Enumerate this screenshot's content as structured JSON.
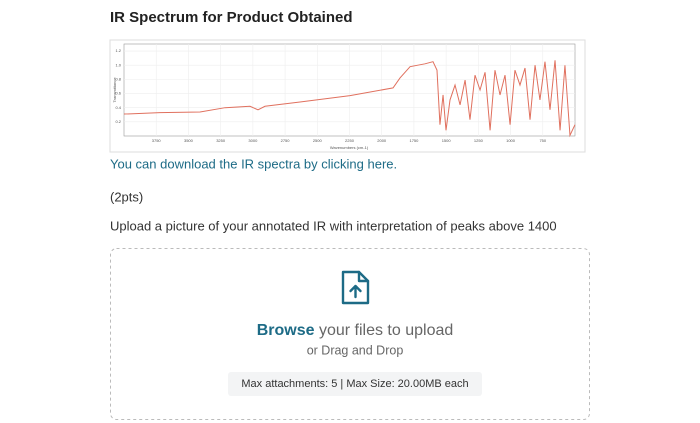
{
  "title": "IR Spectrum for Product Obtained",
  "chart_data": {
    "type": "line",
    "x_label": "Wavenumbers (cm-1)",
    "y_label": "Transmittance",
    "x": [
      4000,
      3721,
      3410,
      3216,
      3022,
      2960,
      2906,
      2634,
      2246,
      1912,
      1858,
      1780,
      1664,
      1602,
      1571,
      1548,
      1524,
      1501,
      1470,
      1431,
      1392,
      1353,
      1315,
      1276,
      1237,
      1198,
      1159,
      1121,
      1082,
      1043,
      1004,
      966,
      927,
      888,
      849,
      810,
      772,
      733,
      694,
      655,
      616,
      578,
      539,
      500
    ],
    "values": [
      0.31,
      0.33,
      0.34,
      0.4,
      0.42,
      0.37,
      0.42,
      0.48,
      0.57,
      0.68,
      0.82,
      0.98,
      1.02,
      1.05,
      0.93,
      0.16,
      0.58,
      0.08,
      0.51,
      0.72,
      0.44,
      0.79,
      0.23,
      0.86,
      0.65,
      0.9,
      0.08,
      0.93,
      0.58,
      0.86,
      0.16,
      0.93,
      0.72,
      0.96,
      0.23,
      1.0,
      0.51,
      1.05,
      0.37,
      1.07,
      0.08,
      1.0,
      0.01,
      0.16
    ],
    "color": "#e0705e",
    "xlim": [
      4000,
      500
    ],
    "xticks": [
      3750,
      3500,
      3250,
      3000,
      2750,
      2500,
      2250,
      2000,
      1750,
      1500,
      1250,
      1000,
      750
    ],
    "ylim": [
      0,
      1.3
    ],
    "yticks": [
      0.2,
      0.4,
      0.6,
      0.8,
      {
        "value": 1,
        "label": "1.0"
      },
      1.2
    ],
    "grid": true
  },
  "link_text": "You can download the IR spectra by clicking here.",
  "points": "(2pts)",
  "instruction": "Upload a picture of your annotated IR with interpretation of peaks above 1400",
  "upload": {
    "browse": "Browse",
    "rest": " your files to upload",
    "drag": "or Drag and Drop",
    "limits": "Max attachments: 5 | Max Size: 20.00MB each"
  }
}
